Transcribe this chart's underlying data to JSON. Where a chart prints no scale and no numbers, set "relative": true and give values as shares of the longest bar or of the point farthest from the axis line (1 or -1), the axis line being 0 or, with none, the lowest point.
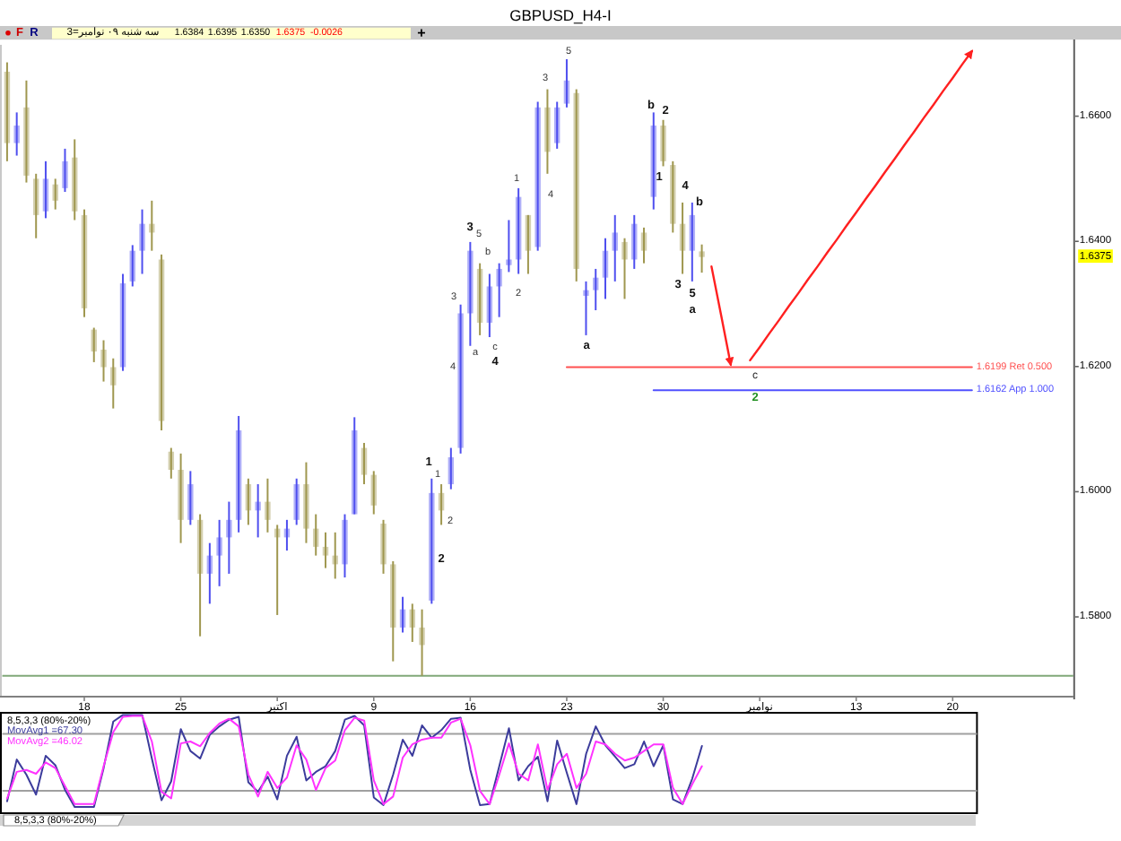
{
  "chart_data": [
    {
      "type": "candlestick",
      "title": "GBPUSD_H4-I",
      "categories": [
        null,
        null,
        null,
        null,
        null,
        null,
        null,
        null,
        "18",
        null,
        null,
        null,
        null,
        null,
        null,
        null,
        null,
        null,
        "25",
        null,
        null,
        null,
        null,
        null,
        null,
        null,
        null,
        null,
        "اکتبر",
        null,
        null,
        null,
        null,
        null,
        null,
        null,
        null,
        null,
        "9",
        null,
        null,
        null,
        null,
        null,
        null,
        null,
        null,
        null,
        "16",
        null,
        null,
        null,
        null,
        null,
        null,
        null,
        null,
        null,
        "23",
        null,
        null,
        null,
        null,
        null,
        null,
        null,
        null,
        null,
        "30",
        null,
        null,
        null,
        null,
        null,
        null,
        null,
        null,
        null,
        "نوامبر",
        null,
        null,
        null,
        null,
        null,
        null,
        null,
        null,
        null,
        "13",
        null,
        null,
        null,
        null,
        null,
        null,
        null,
        null,
        null,
        "20",
        null,
        null,
        null,
        null,
        null,
        null,
        null,
        null,
        null,
        null,
        null,
        null
      ],
      "ohlc": [
        [
          1.6671,
          1.6686,
          1.6528,
          1.6557
        ],
        [
          1.6557,
          1.6606,
          1.6537,
          1.6585
        ],
        [
          1.6614,
          1.6657,
          1.6494,
          1.6505
        ],
        [
          1.65,
          1.6508,
          1.6405,
          1.6442
        ],
        [
          1.6448,
          1.6528,
          1.6437,
          1.65
        ],
        [
          1.6491,
          1.65,
          1.6451,
          1.6465
        ],
        [
          1.6485,
          1.6548,
          1.6479,
          1.6528
        ],
        [
          1.6534,
          1.6563,
          1.6434,
          1.6448
        ],
        [
          1.6442,
          1.6451,
          1.6279,
          1.6293
        ],
        [
          1.6259,
          1.6262,
          1.6207,
          1.6224
        ],
        [
          1.6227,
          1.6242,
          1.6176,
          1.6199
        ],
        [
          1.6199,
          1.6213,
          1.6133,
          1.617
        ],
        [
          1.6199,
          1.6348,
          1.6193,
          1.6333
        ],
        [
          1.6336,
          1.6394,
          1.6328,
          1.6385
        ],
        [
          1.6385,
          1.6451,
          1.6348,
          1.6428
        ],
        [
          1.6428,
          1.6465,
          1.6385,
          1.6414
        ],
        [
          1.6371,
          1.6379,
          1.6098,
          1.6113
        ],
        [
          1.6064,
          1.607,
          1.6021,
          1.6035
        ],
        [
          1.6035,
          1.6061,
          1.5918,
          1.5955
        ],
        [
          1.5955,
          1.6033,
          1.5947,
          1.6012
        ],
        [
          1.5955,
          1.5964,
          1.5769,
          1.5869
        ],
        [
          1.5869,
          1.5918,
          1.5821,
          1.5898
        ],
        [
          1.5898,
          1.5955,
          1.5849,
          1.5927
        ],
        [
          1.5927,
          1.5984,
          1.5869,
          1.5955
        ],
        [
          1.5955,
          1.6121,
          1.5935,
          1.6098
        ],
        [
          1.6012,
          1.6021,
          1.5947,
          1.597
        ],
        [
          1.597,
          1.6012,
          1.5927,
          1.5984
        ],
        [
          1.5984,
          1.6021,
          1.5935,
          1.5955
        ],
        [
          1.5941,
          1.5947,
          1.5803,
          1.5927
        ],
        [
          1.5927,
          1.5955,
          1.5906,
          1.5941
        ],
        [
          1.5955,
          1.6021,
          1.5947,
          1.6012
        ],
        [
          1.6012,
          1.6047,
          1.5918,
          1.5941
        ],
        [
          1.5941,
          1.5964,
          1.5898,
          1.5912
        ],
        [
          1.5912,
          1.5935,
          1.5878,
          1.5898
        ],
        [
          1.5898,
          1.5935,
          1.5861,
          1.5884
        ],
        [
          1.5884,
          1.5964,
          1.5863,
          1.5955
        ],
        [
          1.5964,
          1.6119,
          1.5964,
          1.6098
        ],
        [
          1.607,
          1.6078,
          1.6012,
          1.6027
        ],
        [
          1.6027,
          1.6033,
          1.5964,
          1.5978
        ],
        [
          1.5949,
          1.5955,
          1.5869,
          1.5884
        ],
        [
          1.5884,
          1.5889,
          1.5729,
          1.5783
        ],
        [
          1.5783,
          1.5832,
          1.5775,
          1.5812
        ],
        [
          1.5812,
          1.5821,
          1.576,
          1.5783
        ],
        [
          1.5783,
          1.5812,
          1.5706,
          1.5755
        ],
        [
          1.5826,
          1.6021,
          1.5821,
          1.5998
        ],
        [
          1.5998,
          1.6012,
          1.5947,
          1.597
        ],
        [
          1.6012,
          1.607,
          1.6004,
          1.6055
        ],
        [
          1.607,
          1.6299,
          1.6061,
          1.6285
        ],
        [
          1.6285,
          1.6399,
          1.6233,
          1.6385
        ],
        [
          1.6356,
          1.6365,
          1.625,
          1.627
        ],
        [
          1.627,
          1.6348,
          1.6247,
          1.6328
        ],
        [
          1.6328,
          1.6365,
          1.6279,
          1.6356
        ],
        [
          1.6362,
          1.6434,
          1.6351,
          1.6371
        ],
        [
          1.6371,
          1.6485,
          1.6348,
          1.6471
        ],
        [
          1.6442,
          1.6442,
          1.6348,
          1.6385
        ],
        [
          1.6391,
          1.6623,
          1.6385,
          1.6614
        ],
        [
          1.6614,
          1.6643,
          1.6508,
          1.6543
        ],
        [
          1.6557,
          1.6623,
          1.6548,
          1.6614
        ],
        [
          1.662,
          1.6691,
          1.6614,
          1.6657
        ],
        [
          1.6637,
          1.6643,
          1.6336,
          1.6356
        ],
        [
          1.6313,
          1.6336,
          1.625,
          1.6322
        ],
        [
          1.6322,
          1.6356,
          1.629,
          1.6342
        ],
        [
          1.6342,
          1.6405,
          1.6308,
          1.6385
        ],
        [
          1.6385,
          1.6442,
          1.6336,
          1.6414
        ],
        [
          1.6399,
          1.6405,
          1.6308,
          1.6371
        ],
        [
          1.6371,
          1.6442,
          1.6356,
          1.6428
        ],
        [
          1.6414,
          1.6422,
          1.6365,
          1.6385
        ],
        [
          1.6471,
          1.6606,
          1.6451,
          1.6585
        ],
        [
          1.6585,
          1.6594,
          1.652,
          1.6528
        ],
        [
          1.6522,
          1.6528,
          1.6414,
          1.6428
        ],
        [
          1.6428,
          1.6462,
          1.6348,
          1.6385
        ],
        [
          1.6385,
          1.6462,
          1.6336,
          1.6442
        ],
        [
          1.6384,
          1.6395,
          1.635,
          1.6375
        ],
        null,
        null,
        null,
        null,
        null,
        null,
        null,
        null,
        null,
        null,
        null,
        null,
        null,
        null,
        null,
        null,
        null,
        null,
        null,
        null,
        null,
        null,
        null,
        null,
        null,
        null,
        null,
        null,
        null,
        null,
        null,
        null,
        null,
        null,
        null,
        null,
        null,
        null
      ],
      "colors": [
        "#d4d0b0",
        "#b0b0f8",
        "#d4d0b0",
        "#d4d0b0",
        "#b0b0f8",
        "#d4d0b0",
        "#b0b0f8",
        "#d4d0b0",
        "#d4d0b0",
        "#d4d0b0",
        "#d4d0b0",
        "#d4d0b0",
        "#b0b0f8",
        "#b0b0f8",
        "#b0b0f8",
        "#d4d0b0",
        "#d4d0b0",
        "#d4d0b0",
        "#d4d0b0",
        "#b0b0f8",
        "#d4d0b0",
        "#b0b0f8",
        "#b0b0f8",
        "#b0b0f8",
        "#b0b0f8",
        "#d4d0b0",
        "#b0b0f8",
        "#d4d0b0",
        "#d4d0b0",
        "#b0b0f8",
        "#b0b0f8",
        "#d4d0b0",
        "#d4d0b0",
        "#d4d0b0",
        "#d4d0b0",
        "#b0b0f8",
        "#b0b0f8",
        "#d4d0b0",
        "#d4d0b0",
        "#d4d0b0",
        "#d4d0b0",
        "#b0b0f8",
        "#d4d0b0",
        "#d4d0b0",
        "#b0b0f8",
        "#d4d0b0",
        "#b0b0f8",
        "#b0b0f8",
        "#b0b0f8",
        "#d4d0b0",
        "#b0b0f8",
        "#b0b0f8",
        "#b0b0f8",
        "#b0b0f8",
        "#d4d0b0",
        "#b0b0f8",
        "#d4d0b0",
        "#b0b0f8",
        "#b0b0f8",
        "#d4d0b0",
        "#b0b0f8",
        "#b0b0f8",
        "#b0b0f8",
        "#b0b0f8",
        "#d4d0b0",
        "#b0b0f8",
        "#d4d0b0",
        "#b0b0f8",
        "#d4d0b0",
        "#d4d0b0",
        "#d4d0b0",
        "#b0b0f8",
        "#d4d0b0",
        null,
        null,
        null,
        null,
        null,
        null,
        null,
        null,
        null,
        null,
        null,
        null,
        null,
        null,
        null,
        null,
        null,
        null,
        null,
        null,
        null,
        null,
        null,
        null,
        null,
        null,
        null,
        null,
        null,
        null,
        null,
        null,
        null,
        null,
        null,
        null,
        null,
        null
      ],
      "series": [
        {
          "type": "line",
          "color": "#ff2020",
          "values": [
            null,
            null,
            null,
            null,
            null,
            null,
            null,
            null,
            null,
            null,
            null,
            null,
            null,
            null,
            null,
            null,
            null,
            null,
            null,
            null,
            null,
            null,
            null,
            null,
            null,
            null,
            null,
            null,
            null,
            null,
            null,
            null,
            null,
            null,
            null,
            null,
            null,
            null,
            null,
            null,
            null,
            null,
            null,
            null,
            null,
            null,
            null,
            null,
            null,
            null,
            null,
            null,
            null,
            null,
            null,
            null,
            null,
            null,
            null,
            null,
            null,
            null,
            null,
            null,
            null,
            null,
            null,
            null,
            null,
            null,
            null,
            null,
            null,
            1.636,
            1.6282,
            1.6203,
            null,
            null,
            null,
            null,
            null,
            null,
            null,
            null,
            null,
            null,
            null,
            null,
            null,
            null,
            null,
            null,
            null,
            null,
            null,
            null,
            null,
            null,
            null,
            null,
            null,
            null,
            null,
            null,
            null,
            null,
            null,
            null,
            null,
            null,
            null
          ]
        },
        {
          "type": "line",
          "color": "#ff2020",
          "values": [
            null,
            null,
            null,
            null,
            null,
            null,
            null,
            null,
            null,
            null,
            null,
            null,
            null,
            null,
            null,
            null,
            null,
            null,
            null,
            null,
            null,
            null,
            null,
            null,
            null,
            null,
            null,
            null,
            null,
            null,
            null,
            null,
            null,
            null,
            null,
            null,
            null,
            null,
            null,
            null,
            null,
            null,
            null,
            null,
            null,
            null,
            null,
            null,
            null,
            null,
            null,
            null,
            null,
            null,
            null,
            null,
            null,
            null,
            null,
            null,
            null,
            null,
            null,
            null,
            null,
            null,
            null,
            null,
            null,
            null,
            null,
            null,
            null,
            null,
            null,
            null,
            null,
            1.621,
            1.6231,
            1.6253,
            1.6274,
            1.6296,
            1.6317,
            1.6339,
            1.636,
            1.6382,
            1.6403,
            1.6425,
            1.6446,
            1.6468,
            1.6489,
            1.6511,
            1.6532,
            1.6554,
            1.6575,
            1.6597,
            1.6618,
            1.664,
            1.6661,
            1.6683,
            1.6704,
            null,
            null,
            null,
            null,
            null,
            null,
            null,
            null,
            null,
            null
          ]
        },
        {
          "type": "line",
          "name": "1.6199 Ret 0.500",
          "color": "#ff5050",
          "values": [
            null,
            null,
            null,
            null,
            null,
            null,
            null,
            null,
            null,
            null,
            null,
            null,
            null,
            null,
            null,
            null,
            null,
            null,
            null,
            null,
            null,
            null,
            null,
            null,
            null,
            null,
            null,
            null,
            null,
            null,
            null,
            null,
            null,
            null,
            null,
            null,
            null,
            null,
            null,
            null,
            null,
            null,
            null,
            null,
            null,
            null,
            null,
            null,
            null,
            null,
            null,
            null,
            null,
            null,
            null,
            null,
            null,
            null,
            1.6199,
            1.6199,
            1.6199,
            1.6199,
            1.6199,
            1.6199,
            1.6199,
            1.6199,
            1.6199,
            1.6199,
            1.6199,
            1.6199,
            1.6199,
            1.6199,
            1.6199,
            1.6199,
            1.6199,
            1.6199,
            1.6199,
            1.6199,
            1.6199,
            1.6199,
            1.6199,
            1.6199,
            1.6199,
            1.6199,
            1.6199,
            1.6199,
            1.6199,
            1.6199,
            1.6199,
            1.6199,
            1.6199,
            1.6199,
            1.6199,
            1.6199,
            1.6199,
            1.6199,
            1.6199,
            1.6199,
            1.6199,
            1.6199,
            1.6199,
            null,
            null,
            null,
            null,
            null,
            null,
            null,
            null,
            null,
            null
          ]
        },
        {
          "type": "line",
          "name": "1.6162 App 1.000",
          "color": "#5050ff",
          "values": [
            null,
            null,
            null,
            null,
            null,
            null,
            null,
            null,
            null,
            null,
            null,
            null,
            null,
            null,
            null,
            null,
            null,
            null,
            null,
            null,
            null,
            null,
            null,
            null,
            null,
            null,
            null,
            null,
            null,
            null,
            null,
            null,
            null,
            null,
            null,
            null,
            null,
            null,
            null,
            null,
            null,
            null,
            null,
            null,
            null,
            null,
            null,
            null,
            null,
            null,
            null,
            null,
            null,
            null,
            null,
            null,
            null,
            null,
            null,
            null,
            null,
            null,
            null,
            null,
            null,
            null,
            null,
            1.6162,
            1.6162,
            1.6162,
            1.6162,
            1.6162,
            1.6162,
            1.6162,
            1.6162,
            1.6162,
            1.6162,
            1.6162,
            1.6162,
            1.6162,
            1.6162,
            1.6162,
            1.6162,
            1.6162,
            1.6162,
            1.6162,
            1.6162,
            1.6162,
            1.6162,
            1.6162,
            1.6162,
            1.6162,
            1.6162,
            1.6162,
            1.6162,
            1.6162,
            1.6162,
            1.6162,
            1.6162,
            1.6162,
            1.6162,
            null,
            null,
            null,
            null,
            null,
            null,
            null,
            null,
            null,
            null
          ]
        }
      ],
      "ref_lines": [
        {
          "axis": "y",
          "value": 1.5706,
          "color": "#80a878"
        }
      ],
      "ylim": [
        1.5674,
        1.6714
      ],
      "yticks": [
        {
          "value": 1.58,
          "label": "1.5800"
        },
        {
          "value": 1.6,
          "label": "1.6000"
        },
        {
          "value": 1.62,
          "label": "1.6200"
        },
        {
          "value": 1.64,
          "label": "1.6400"
        },
        {
          "value": 1.66,
          "label": "1.6600"
        }
      ],
      "annotations": [
        "F",
        "R",
        "3=سه شنبه ۰۹ نوامبر",
        "1.6384",
        "1.6395",
        "1.6350",
        "1.6375",
        "-0.0026",
        "+",
        "1",
        "1",
        "2",
        "2",
        "4",
        "3",
        "3",
        "5",
        "a",
        "b",
        "c",
        "4",
        "1",
        "2",
        "3",
        "4",
        "5",
        "a",
        "b",
        "2",
        "1",
        "4",
        "b",
        "3",
        "5",
        "a",
        "c",
        "2",
        {
          "text": "1.6375",
          "y": 1.6375
        }
      ]
    },
    {
      "type": "line",
      "title": "8,5,3,3 (80%-20%)",
      "relative": true,
      "categories": [
        null,
        null,
        null,
        null,
        null,
        null,
        null,
        null,
        null,
        null,
        null,
        null,
        null,
        null,
        null,
        null,
        null,
        null,
        null,
        null,
        null,
        null,
        null,
        null,
        null,
        null,
        null,
        null,
        null,
        null,
        null,
        null,
        null,
        null,
        null,
        null,
        null,
        null,
        null,
        null,
        null,
        null,
        null,
        null,
        null,
        null,
        null,
        null,
        null,
        null,
        null,
        null,
        null,
        null,
        null,
        null,
        null,
        null,
        null,
        null,
        null,
        null,
        null,
        null,
        null,
        null,
        null,
        null,
        null,
        null,
        null,
        null,
        null,
        null,
        null,
        null,
        null,
        null,
        null,
        null,
        null,
        null,
        null,
        null,
        null,
        null,
        null,
        null,
        null,
        null,
        null,
        null,
        null,
        null,
        null,
        null,
        null,
        null,
        null,
        null,
        null
      ],
      "series": [
        {
          "name": "MovAvg1 =67.30",
          "color": "#3c3c9c",
          "values": [
            0.09,
            0.53,
            0.37,
            0.16,
            0.57,
            0.47,
            0.21,
            0.03,
            0.03,
            0.03,
            0.44,
            0.93,
            1,
            1,
            1,
            0.54,
            0.1,
            0.3,
            0.85,
            0.62,
            0.54,
            0.79,
            0.88,
            0.95,
            0.98,
            0.29,
            0.19,
            0.35,
            0.11,
            0.57,
            0.77,
            0.31,
            0.4,
            0.46,
            0.62,
            0.95,
            0.99,
            0.89,
            0.13,
            0.05,
            0.37,
            0.74,
            0.57,
            0.89,
            0.76,
            0.84,
            0.96,
            0.97,
            0.42,
            0.05,
            0.06,
            0.46,
            0.86,
            0.31,
            0.46,
            0.56,
            0.09,
            0.73,
            0.39,
            0.06,
            0.59,
            0.88,
            0.68,
            0.56,
            0.44,
            0.48,
            0.72,
            0.46,
            0.68,
            0.11,
            0.06,
            0.33,
            0.673,
            null,
            null,
            null,
            null,
            null,
            null,
            null,
            null,
            null,
            null,
            null,
            null,
            null,
            null,
            null,
            null,
            null,
            null,
            null,
            null,
            null,
            null,
            null,
            null,
            null,
            null,
            null,
            null
          ]
        },
        {
          "name": "MovAvg2 =46.02",
          "color": "#ff33ff",
          "values": [
            0.12,
            0.4,
            0.42,
            0.38,
            0.5,
            0.44,
            0.25,
            0.06,
            0.06,
            0.06,
            0.46,
            0.82,
            0.98,
            0.99,
            0.99,
            0.72,
            0.19,
            0.12,
            0.7,
            0.72,
            0.67,
            0.81,
            0.91,
            0.96,
            0.88,
            0.37,
            0.14,
            0.4,
            0.23,
            0.34,
            0.68,
            0.53,
            0.21,
            0.44,
            0.52,
            0.84,
            0.97,
            0.94,
            0.31,
            0.06,
            0.14,
            0.55,
            0.69,
            0.74,
            0.76,
            0.76,
            0.92,
            0.96,
            0.68,
            0.2,
            0.06,
            0.37,
            0.7,
            0.38,
            0.31,
            0.69,
            0.21,
            0.48,
            0.59,
            0.23,
            0.38,
            0.72,
            0.69,
            0.59,
            0.52,
            0.55,
            0.62,
            0.69,
            0.69,
            0.23,
            0.06,
            0.27,
            0.46,
            null,
            null,
            null,
            null,
            null,
            null,
            null,
            null,
            null,
            null,
            null,
            null,
            null,
            null,
            null,
            null,
            null,
            null,
            null,
            null,
            null,
            null,
            null,
            null,
            null,
            null,
            null,
            null
          ]
        }
      ],
      "ref_lines": [
        {
          "axis": "y",
          "value": 0.2,
          "color": "#a0a0a0"
        },
        {
          "axis": "y",
          "value": 0.8,
          "color": "#a0a0a0"
        }
      ],
      "annotations": [
        "8,5,3,3 (80%-20%)"
      ]
    }
  ]
}
